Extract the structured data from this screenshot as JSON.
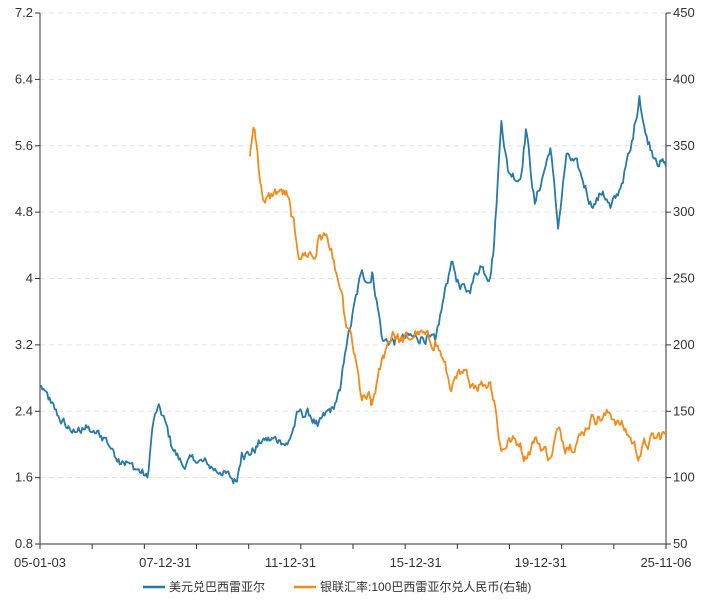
{
  "chart_data": {
    "type": "line",
    "title": "",
    "xlabel": "",
    "x_ticks": [
      "05-01-03",
      "07-12-31",
      "11-12-31",
      "15-12-31",
      "19-12-31",
      "25-11-06"
    ],
    "y_left": {
      "ticks": [
        "0.8",
        "1.6",
        "2.4",
        "3.2",
        "4",
        "4.8",
        "5.6",
        "6.4",
        "7.2"
      ],
      "ylim": [
        0.8,
        7.2
      ]
    },
    "y_right": {
      "ticks": [
        "50",
        "100",
        "150",
        "200",
        "250",
        "300",
        "350",
        "400",
        "450"
      ],
      "ylim": [
        50,
        450
      ]
    },
    "grid": "horizontal-dashed",
    "legend_position": "bottom",
    "series": [
      {
        "name": "美元兑巴西雷亚尔",
        "axis": "left",
        "color": "#2878a8",
        "points": [
          [
            "2005-01-03",
            2.7
          ],
          [
            "2005-03-01",
            2.65
          ],
          [
            "2005-05-15",
            2.5
          ],
          [
            "2005-08-01",
            2.35
          ],
          [
            "2005-11-01",
            2.25
          ],
          [
            "2006-03-01",
            2.15
          ],
          [
            "2006-06-01",
            2.2
          ],
          [
            "2006-10-01",
            2.15
          ],
          [
            "2007-03-01",
            2.08
          ],
          [
            "2007-06-01",
            1.95
          ],
          [
            "2007-10-01",
            1.8
          ],
          [
            "2007-12-31",
            1.77
          ],
          [
            "2008-04-01",
            1.7
          ],
          [
            "2008-08-01",
            1.6
          ],
          [
            "2008-10-01",
            2.2
          ],
          [
            "2008-12-05",
            2.45
          ],
          [
            "2009-03-01",
            2.3
          ],
          [
            "2009-06-01",
            1.95
          ],
          [
            "2009-10-01",
            1.75
          ],
          [
            "2010-03-01",
            1.8
          ],
          [
            "2010-08-01",
            1.76
          ],
          [
            "2011-01-01",
            1.66
          ],
          [
            "2011-07-25",
            1.55
          ],
          [
            "2011-09-22",
            1.9
          ],
          [
            "2011-12-31",
            1.87
          ],
          [
            "2012-05-30",
            2.05
          ],
          [
            "2012-12-31",
            2.05
          ],
          [
            "2013-04-01",
            2.0
          ],
          [
            "2013-08-21",
            2.4
          ],
          [
            "2013-12-31",
            2.35
          ],
          [
            "2014-04-01",
            2.22
          ],
          [
            "2014-10-01",
            2.45
          ],
          [
            "2014-12-31",
            2.65
          ],
          [
            "2015-03-01",
            3.1
          ],
          [
            "2015-09-23",
            4.1
          ],
          [
            "2015-12-31",
            3.95
          ],
          [
            "2016-02-01",
            4.05
          ],
          [
            "2016-06-01",
            3.25
          ],
          [
            "2016-12-31",
            3.25
          ],
          [
            "2017-06-01",
            3.3
          ],
          [
            "2017-12-31",
            3.3
          ],
          [
            "2018-03-01",
            3.25
          ],
          [
            "2018-09-13",
            4.2
          ],
          [
            "2018-12-31",
            3.87
          ],
          [
            "2019-04-01",
            3.85
          ],
          [
            "2019-09-01",
            4.15
          ],
          [
            "2019-12-31",
            4.02
          ],
          [
            "2020-02-15",
            4.4
          ],
          [
            "2020-05-14",
            5.9
          ],
          [
            "2020-08-01",
            5.3
          ],
          [
            "2020-12-31",
            5.2
          ],
          [
            "2021-03-09",
            5.8
          ],
          [
            "2021-06-25",
            4.9
          ],
          [
            "2021-12-31",
            5.57
          ],
          [
            "2022-04-04",
            4.6
          ],
          [
            "2022-07-15",
            5.5
          ],
          [
            "2022-12-31",
            5.28
          ],
          [
            "2023-06-01",
            4.85
          ],
          [
            "2023-10-01",
            5.05
          ],
          [
            "2023-12-31",
            4.85
          ],
          [
            "2024-04-01",
            5.0
          ],
          [
            "2024-09-01",
            5.55
          ],
          [
            "2024-12-18",
            6.2
          ],
          [
            "2025-03-01",
            5.75
          ],
          [
            "2025-07-01",
            5.45
          ],
          [
            "2025-11-06",
            5.35
          ]
        ]
      },
      {
        "name": "银联汇率:100巴西雷亚尔兑人民币(右轴)",
        "axis": "right",
        "color": "#f08c1e",
        "points": [
          [
            "2011-12-31",
            342
          ],
          [
            "2012-01-25",
            355
          ],
          [
            "2012-02-28",
            362
          ],
          [
            "2012-04-01",
            345
          ],
          [
            "2012-05-15",
            320
          ],
          [
            "2012-07-01",
            307
          ],
          [
            "2012-10-01",
            312
          ],
          [
            "2013-01-01",
            317
          ],
          [
            "2013-04-01",
            312
          ],
          [
            "2013-07-01",
            285
          ],
          [
            "2013-09-01",
            265
          ],
          [
            "2013-12-31",
            270
          ],
          [
            "2014-03-01",
            265
          ],
          [
            "2014-05-01",
            283
          ],
          [
            "2014-08-01",
            280
          ],
          [
            "2014-10-01",
            265
          ],
          [
            "2014-12-31",
            242
          ],
          [
            "2015-03-01",
            220
          ],
          [
            "2015-06-01",
            200
          ],
          [
            "2015-09-23",
            158
          ],
          [
            "2015-12-31",
            160
          ],
          [
            "2016-01-21",
            155
          ],
          [
            "2016-04-01",
            175
          ],
          [
            "2016-07-01",
            195
          ],
          [
            "2016-10-01",
            210
          ],
          [
            "2016-12-31",
            203
          ],
          [
            "2017-04-01",
            205
          ],
          [
            "2017-08-01",
            210
          ],
          [
            "2017-12-31",
            202
          ],
          [
            "2018-03-01",
            203
          ],
          [
            "2018-06-01",
            190
          ],
          [
            "2018-09-13",
            165
          ],
          [
            "2018-12-31",
            178
          ],
          [
            "2019-04-01",
            176
          ],
          [
            "2019-09-01",
            170
          ],
          [
            "2019-12-31",
            172
          ],
          [
            "2020-02-15",
            158
          ],
          [
            "2020-05-14",
            120
          ],
          [
            "2020-08-01",
            128
          ],
          [
            "2020-12-31",
            126
          ],
          [
            "2021-03-09",
            114
          ],
          [
            "2021-06-25",
            130
          ],
          [
            "2021-12-31",
            115
          ],
          [
            "2022-04-04",
            137
          ],
          [
            "2022-07-15",
            122
          ],
          [
            "2022-12-31",
            132
          ],
          [
            "2023-06-01",
            147
          ],
          [
            "2023-10-01",
            145
          ],
          [
            "2023-12-31",
            148
          ],
          [
            "2024-04-01",
            143
          ],
          [
            "2024-09-01",
            130
          ],
          [
            "2024-12-18",
            116
          ],
          [
            "2025-03-01",
            125
          ],
          [
            "2025-07-01",
            130
          ],
          [
            "2025-11-06",
            133
          ]
        ]
      }
    ]
  }
}
